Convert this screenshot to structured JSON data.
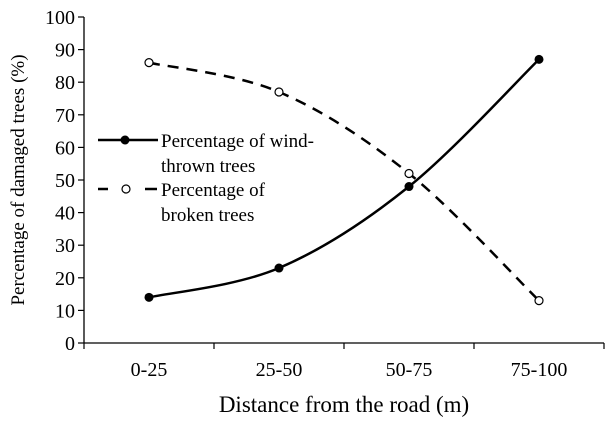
{
  "chart_data": {
    "type": "line",
    "title": "",
    "xlabel": "Distance from the road (m)",
    "ylabel": "Percentage of damaged trees (%)",
    "categories": [
      "0-25",
      "25-50",
      "50-75",
      "75-100"
    ],
    "ylim": [
      0,
      100
    ],
    "yticks": [
      0,
      10,
      20,
      30,
      40,
      50,
      60,
      70,
      80,
      90,
      100
    ],
    "grid": false,
    "legend_position": "center-left inside plot",
    "series": [
      {
        "name": "Percentage of wind-thrown trees",
        "values": [
          14,
          23,
          48,
          87
        ],
        "line_style": "solid",
        "marker": "filled-circle",
        "color": "#000000"
      },
      {
        "name": "Percentage of broken trees",
        "values": [
          86,
          77,
          52,
          13
        ],
        "line_style": "dashed",
        "marker": "open-circle",
        "color": "#000000"
      }
    ]
  },
  "legend": {
    "wind": {
      "line1": "Percentage of wind-",
      "line2": "thrown trees"
    },
    "broken": {
      "line1": "Percentage of",
      "line2": "broken trees"
    }
  },
  "axes": {
    "xlabel": "Distance from the road (m)",
    "ylabel": "Percentage of damaged trees (%)",
    "yticks": [
      "0",
      "10",
      "20",
      "30",
      "40",
      "50",
      "60",
      "70",
      "80",
      "90",
      "100"
    ],
    "xticks": [
      "0-25",
      "25-50",
      "50-75",
      "75-100"
    ]
  }
}
